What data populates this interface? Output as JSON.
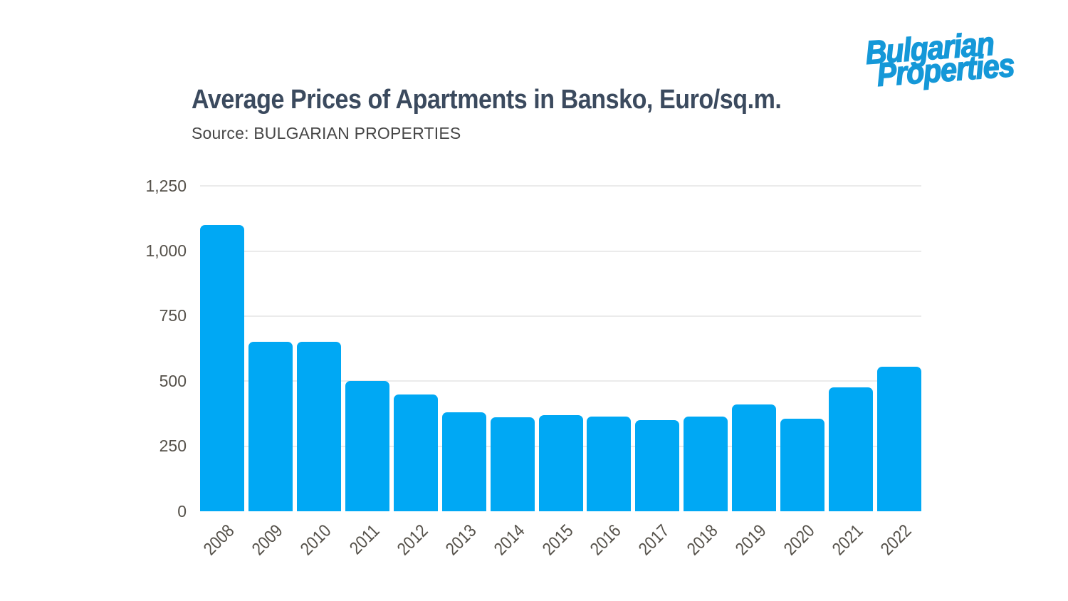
{
  "logo": {
    "line1": "Bulgarian",
    "line2": "Properties",
    "color": "#1598d8"
  },
  "header": {
    "title": "Average Prices of Apartments in Bansko, Euro/sq.m.",
    "subtitle": "Source: BULGARIAN PROPERTIES"
  },
  "chart_data": {
    "type": "bar",
    "title": "Average Prices of Apartments in Bansko, Euro/sq.m.",
    "subtitle": "Source: BULGARIAN PROPERTIES",
    "categories": [
      "2008",
      "2009",
      "2010",
      "2011",
      "2012",
      "2013",
      "2014",
      "2015",
      "2016",
      "2017",
      "2018",
      "2019",
      "2020",
      "2021",
      "2022"
    ],
    "values": [
      1100,
      650,
      650,
      500,
      450,
      380,
      360,
      370,
      365,
      350,
      365,
      410,
      355,
      475,
      555
    ],
    "xlabel": "",
    "ylabel": "",
    "ylim": [
      0,
      1250
    ],
    "ytick_interval": 250,
    "ytick_labels": [
      "0",
      "250",
      "500",
      "750",
      "1,000",
      "1,250"
    ],
    "x_tick_rotation": -45,
    "grid": true,
    "legend": "none",
    "bar_color": "#00a8f4",
    "gridline_color": "#ebebeb",
    "axis_label_color": "#55514a"
  }
}
